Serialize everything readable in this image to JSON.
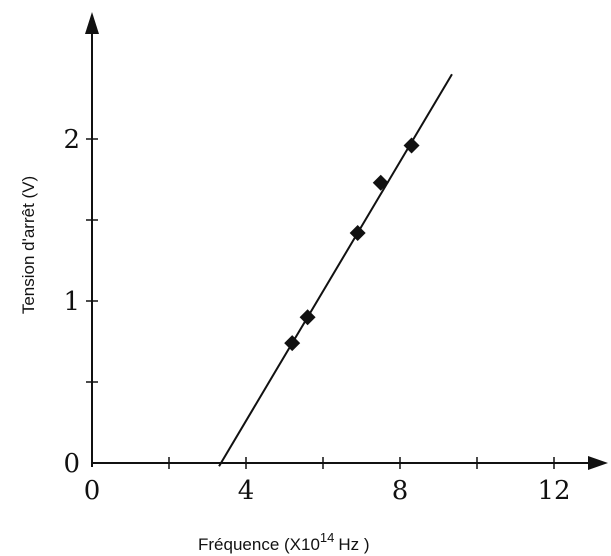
{
  "chart_data": {
    "type": "scatter",
    "title": "",
    "xlabel_main": "Fréquence (X10",
    "xlabel_sup": "14",
    "xlabel_end": "Hz )",
    "ylabel": "Tension d'arrêt (V)",
    "xlim": [
      0,
      13.5
    ],
    "ylim": [
      0,
      2.55
    ],
    "x_ticks": [
      0,
      2,
      4,
      6,
      8,
      10,
      12
    ],
    "x_tick_labels": [
      "0",
      "4",
      "8",
      "12"
    ],
    "x_tick_label_values": [
      0,
      4,
      8,
      12
    ],
    "y_ticks": [
      0,
      0.5,
      1,
      1.5,
      2
    ],
    "y_tick_labels": [
      "0",
      "1",
      "2"
    ],
    "y_tick_label_values": [
      0,
      1,
      2
    ],
    "grid": false,
    "legend": "none",
    "series": [
      {
        "marker": "diamond",
        "points": [
          {
            "x": 5.2,
            "y": 0.74
          },
          {
            "x": 5.6,
            "y": 0.9
          },
          {
            "x": 6.9,
            "y": 1.42
          },
          {
            "x": 7.5,
            "y": 1.73
          },
          {
            "x": 8.3,
            "y": 1.96
          }
        ]
      }
    ],
    "fit_line": {
      "x": [
        3.3,
        9.35
      ],
      "y": [
        -0.02,
        2.4
      ]
    },
    "colors": {
      "axis": "#111111",
      "marker": "#111111",
      "line": "#111111"
    }
  }
}
